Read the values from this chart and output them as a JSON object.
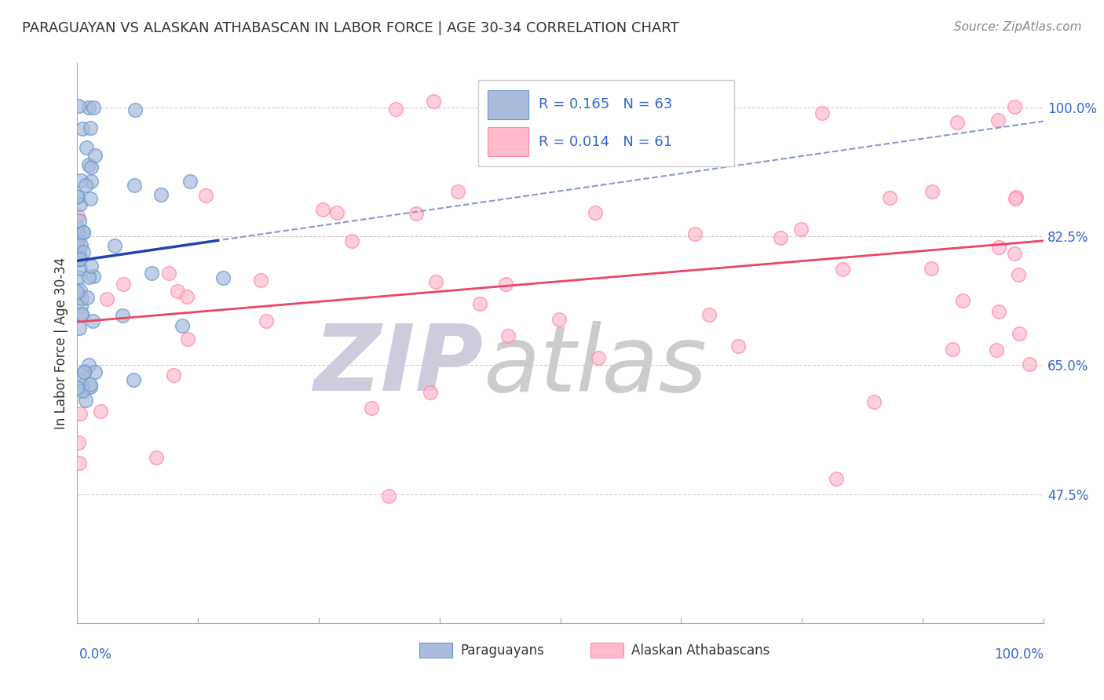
{
  "title": "PARAGUAYAN VS ALASKAN ATHABASCAN IN LABOR FORCE | AGE 30-34 CORRELATION CHART",
  "source_text": "Source: ZipAtlas.com",
  "ylabel": "In Labor Force | Age 30-34",
  "xlim": [
    0.0,
    1.0
  ],
  "ylim": [
    0.3,
    1.06
  ],
  "yticks": [
    0.475,
    0.65,
    0.825,
    1.0
  ],
  "ytick_labels": [
    "47.5%",
    "65.0%",
    "82.5%",
    "100.0%"
  ],
  "xtick_positions": [
    0.0,
    0.125,
    0.25,
    0.375,
    0.5,
    0.625,
    0.75,
    0.875,
    1.0
  ],
  "R_blue": 0.165,
  "N_blue": 63,
  "R_pink": 0.014,
  "N_pink": 61,
  "blue_face_color": "#AABBDD",
  "blue_edge_color": "#6699CC",
  "pink_face_color": "#FFBBCC",
  "pink_edge_color": "#FF88AA",
  "trend_blue_color": "#2244AA",
  "trend_blue_dashed_color": "#8899CC",
  "trend_pink_color": "#EE4466",
  "watermark_zip_color": "#CCCCDD",
  "watermark_atlas_color": "#CCCCCC",
  "background_color": "#FFFFFF",
  "grid_color": "#CCCCCC",
  "grid_linestyle": "--",
  "spine_color": "#AAAAAA",
  "title_color": "#333333",
  "source_color": "#888888",
  "right_tick_color": "#3366CC",
  "bottom_label_color": "#3366CC",
  "legend_text_color": "#3366CC",
  "legend_border_color": "#CCCCCC",
  "bottom_legend_text_color": "#333333"
}
